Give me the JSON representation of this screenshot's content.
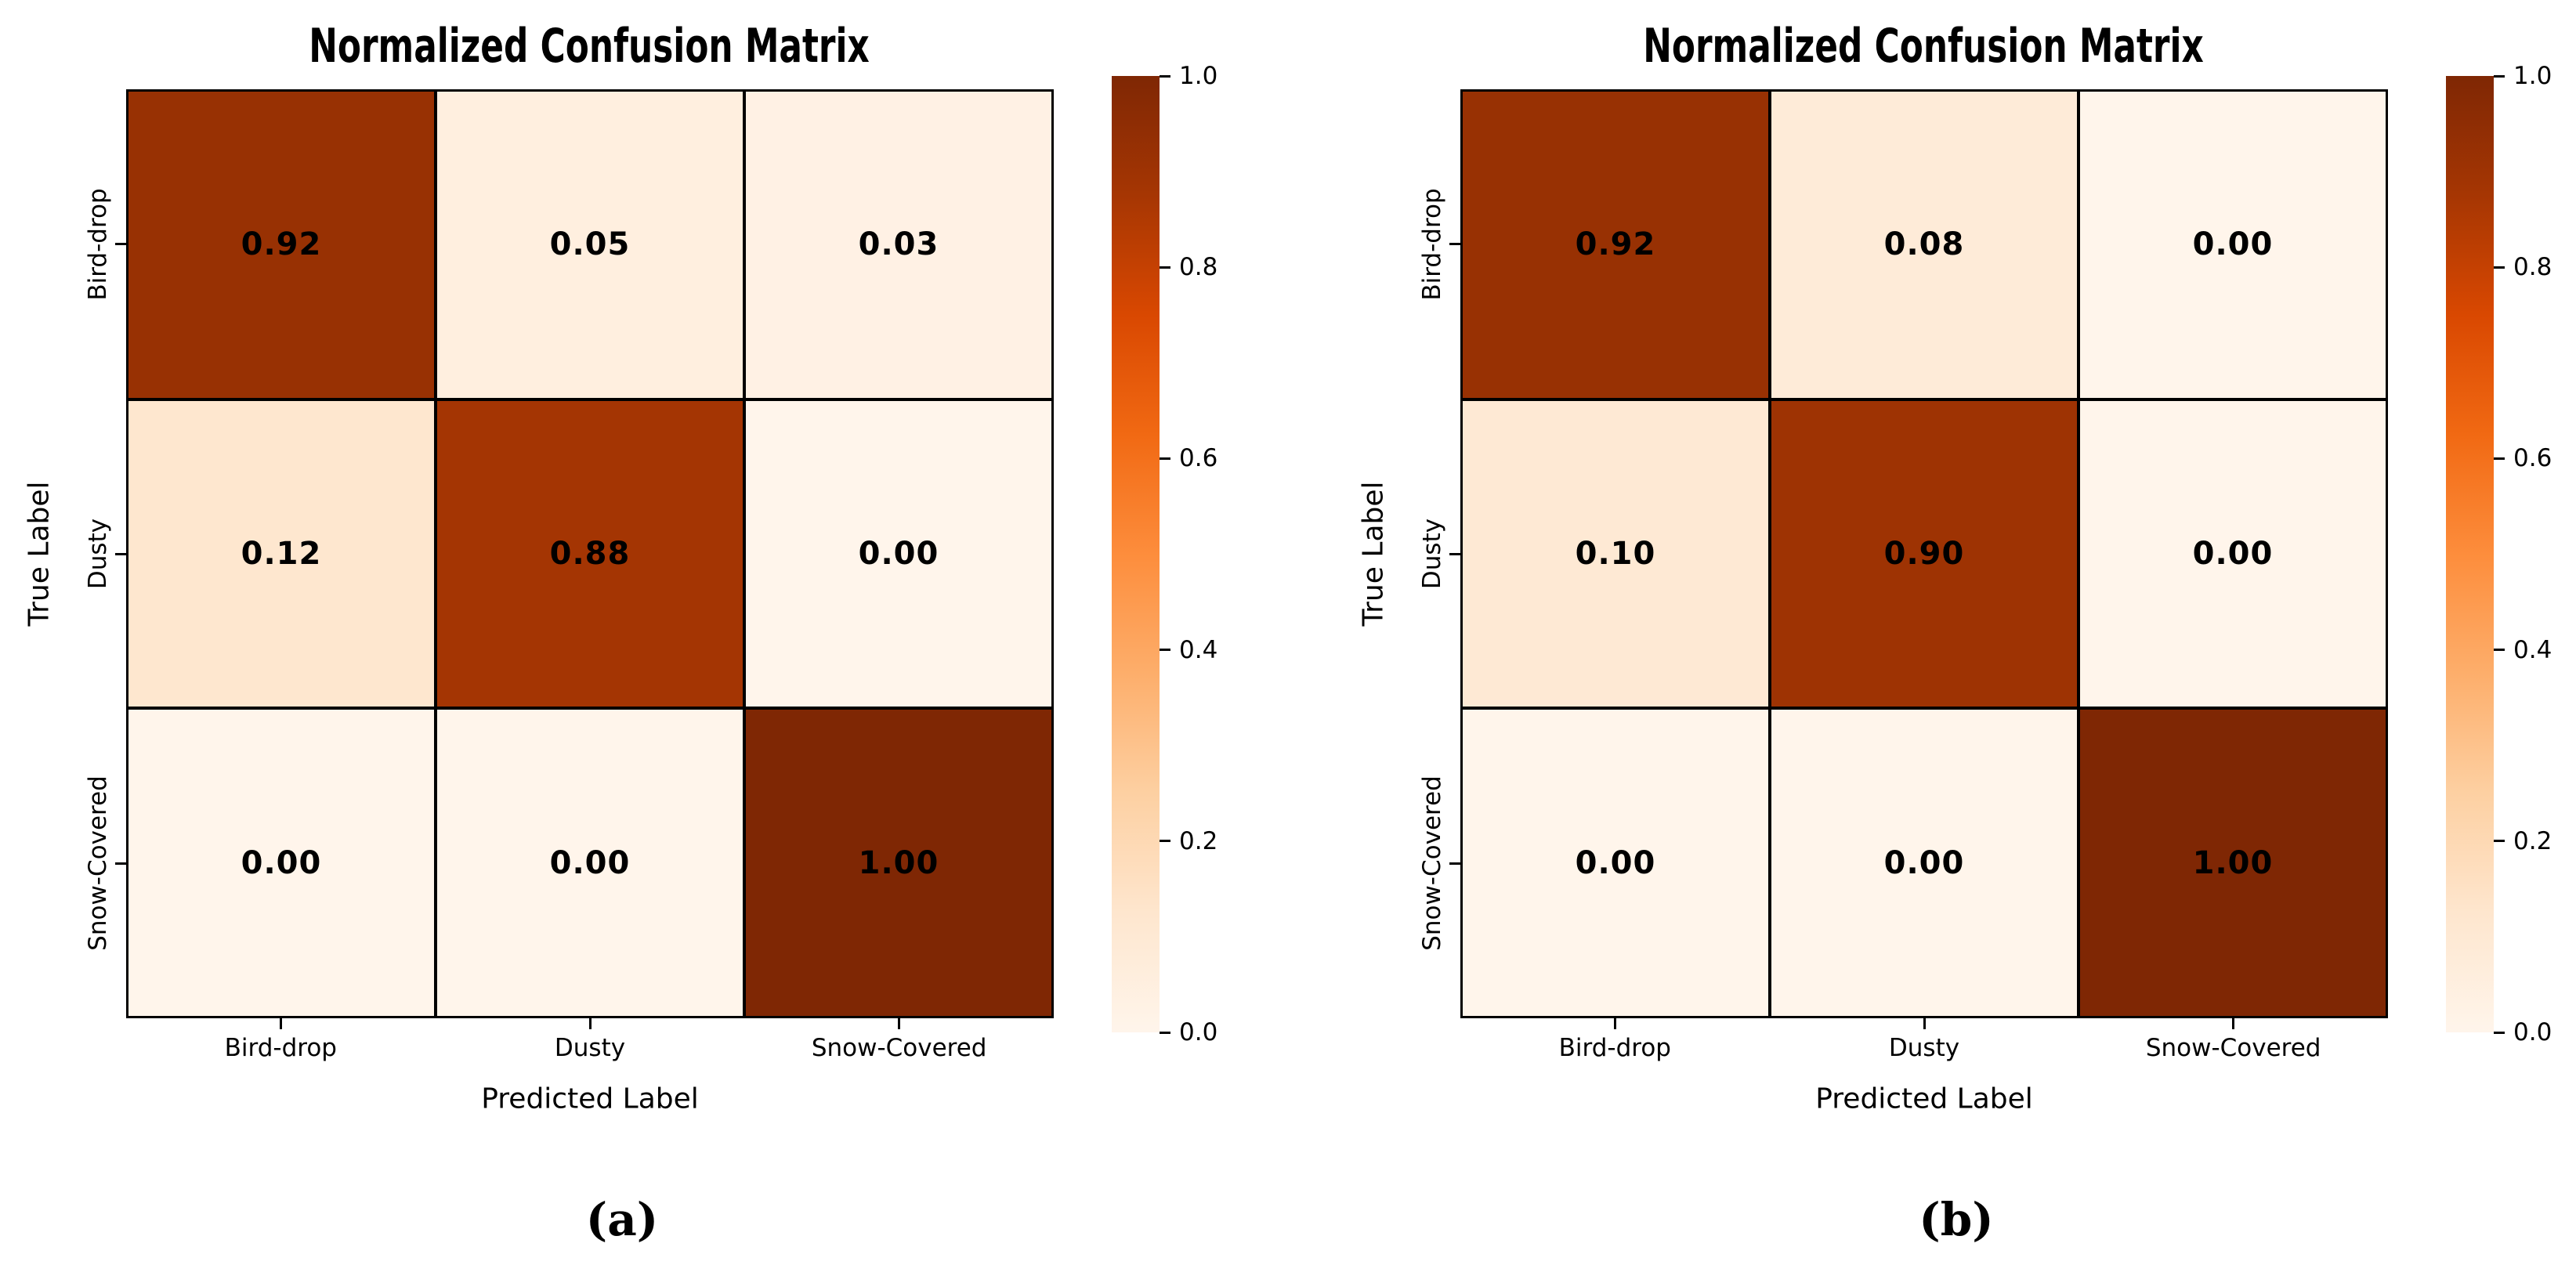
{
  "chart_data": [
    {
      "type": "heatmap",
      "title": "Normalized Confusion Matrix",
      "xlabel": "Predicted Label",
      "ylabel": "True Label",
      "sublabel": "(a)",
      "x_categories": [
        "Bird-drop",
        "Dusty",
        "Snow-Covered"
      ],
      "y_categories": [
        "Bird-drop",
        "Dusty",
        "Snow-Covered"
      ],
      "values": [
        [
          0.92,
          0.05,
          0.03
        ],
        [
          0.12,
          0.88,
          0.0
        ],
        [
          0.0,
          0.0,
          1.0
        ]
      ],
      "labels": [
        [
          "0.92",
          "0.05",
          "0.03"
        ],
        [
          "0.12",
          "0.88",
          "0.00"
        ],
        [
          "0.00",
          "0.00",
          "1.00"
        ]
      ],
      "value_range": [
        0,
        1
      ],
      "grid": "black cell borders",
      "legend_position": "right colorbar",
      "colorbar": {
        "min": 0.0,
        "max": 1.0,
        "tick_labels": [
          "1.0",
          "0.8",
          "0.6",
          "0.4",
          "0.2",
          "0.0"
        ]
      },
      "colormap": {
        "name": "Oranges",
        "anchors": [
          "#fff5eb",
          "#fee6ce",
          "#fdd0a2",
          "#fdae6b",
          "#fd8d3c",
          "#f16913",
          "#d94801",
          "#a63603",
          "#7f2704"
        ]
      },
      "text_color": "#000000"
    },
    {
      "type": "heatmap",
      "title": "Normalized Confusion Matrix",
      "xlabel": "Predicted Label",
      "ylabel": "True Label",
      "sublabel": "(b)",
      "x_categories": [
        "Bird-drop",
        "Dusty",
        "Snow-Covered"
      ],
      "y_categories": [
        "Bird-drop",
        "Dusty",
        "Snow-Covered"
      ],
      "values": [
        [
          0.92,
          0.08,
          0.0
        ],
        [
          0.1,
          0.9,
          0.0
        ],
        [
          0.0,
          0.0,
          1.0
        ]
      ],
      "labels": [
        [
          "0.92",
          "0.08",
          "0.00"
        ],
        [
          "0.10",
          "0.90",
          "0.00"
        ],
        [
          "0.00",
          "0.00",
          "1.00"
        ]
      ],
      "value_range": [
        0,
        1
      ],
      "grid": "black cell borders",
      "legend_position": "right colorbar",
      "colorbar": {
        "min": 0.0,
        "max": 1.0,
        "tick_labels": [
          "1.0",
          "0.8",
          "0.6",
          "0.4",
          "0.2",
          "0.0"
        ]
      },
      "colormap": {
        "name": "Oranges",
        "anchors": [
          "#fff5eb",
          "#fee6ce",
          "#fdd0a2",
          "#fdae6b",
          "#fd8d3c",
          "#f16913",
          "#d94801",
          "#a63603",
          "#7f2704"
        ]
      },
      "text_color": "#000000"
    }
  ]
}
